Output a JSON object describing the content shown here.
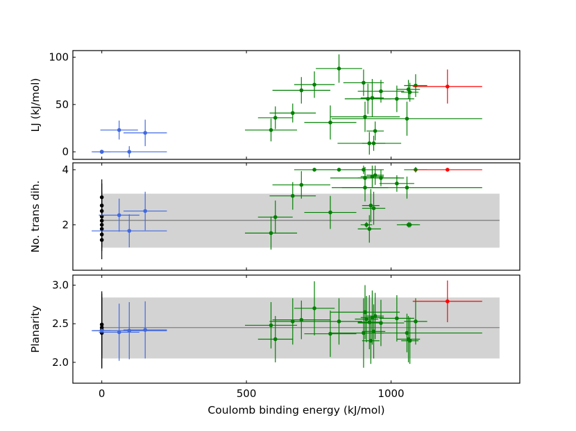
{
  "chart_data": {
    "type": "scatter",
    "xlabel": "Coulomb binding energy (kJ/mol)",
    "xlim": [
      -100,
      1445
    ],
    "xticks": [
      0,
      500,
      1000
    ],
    "xtick_labels": [
      "0",
      "500",
      "1000"
    ],
    "colors": {
      "black": "#000000",
      "blue": "#4169e1",
      "green": "#008000",
      "red": "#ff0000",
      "band": "#d3d3d3",
      "mean_line": "#808080"
    },
    "panels": [
      {
        "name": "lj",
        "ylabel": "LJ (kJ/mol)",
        "ylim": [
          -8,
          107
        ],
        "yticks": [
          0,
          50,
          100
        ],
        "ytick_labels": [
          "0",
          "50",
          "100"
        ],
        "points": [
          {
            "g": "black",
            "x": 0,
            "y": 0,
            "xe": 0,
            "ye": 0
          },
          {
            "g": "blue",
            "x": 60,
            "y": 23,
            "xe": 65,
            "ye": 10
          },
          {
            "g": "blue",
            "x": 150,
            "y": 20,
            "xe": 75,
            "ye": 14
          },
          {
            "g": "blue",
            "x": 95,
            "y": 0,
            "xe": 130,
            "ye": 6
          },
          {
            "g": "blue",
            "x": 0,
            "y": 0,
            "xe": 30,
            "ye": 0
          },
          {
            "g": "green",
            "x": 585,
            "y": 23,
            "xe": 90,
            "ye": 12
          },
          {
            "g": "green",
            "x": 600,
            "y": 36,
            "xe": 60,
            "ye": 12
          },
          {
            "g": "green",
            "x": 660,
            "y": 41,
            "xe": 80,
            "ye": 10
          },
          {
            "g": "green",
            "x": 690,
            "y": 65,
            "xe": 100,
            "ye": 14
          },
          {
            "g": "green",
            "x": 735,
            "y": 71,
            "xe": 70,
            "ye": 14
          },
          {
            "g": "green",
            "x": 790,
            "y": 31,
            "xe": 90,
            "ye": 18
          },
          {
            "g": "green",
            "x": 820,
            "y": 88,
            "xe": 80,
            "ye": 15
          },
          {
            "g": "green",
            "x": 905,
            "y": 73,
            "xe": 70,
            "ye": 14
          },
          {
            "g": "green",
            "x": 910,
            "y": 37,
            "xe": 120,
            "ye": 16
          },
          {
            "g": "green",
            "x": 920,
            "y": 56,
            "xe": 80,
            "ye": 16
          },
          {
            "g": "green",
            "x": 925,
            "y": 9,
            "xe": 110,
            "ye": 12
          },
          {
            "g": "green",
            "x": 935,
            "y": 57,
            "xe": 40,
            "ye": 20
          },
          {
            "g": "green",
            "x": 940,
            "y": 9,
            "xe": 40,
            "ye": 8
          },
          {
            "g": "green",
            "x": 945,
            "y": 22,
            "xe": 30,
            "ye": 10
          },
          {
            "g": "green",
            "x": 965,
            "y": 64,
            "xe": 80,
            "ye": 12
          },
          {
            "g": "green",
            "x": 1020,
            "y": 56,
            "xe": 60,
            "ye": 14
          },
          {
            "g": "green",
            "x": 1055,
            "y": 35,
            "xe": 260,
            "ye": 18
          },
          {
            "g": "green",
            "x": 1060,
            "y": 66,
            "xe": 40,
            "ye": 10
          },
          {
            "g": "green",
            "x": 1065,
            "y": 63,
            "xe": 30,
            "ye": 10
          },
          {
            "g": "green",
            "x": 1085,
            "y": 70,
            "xe": 40,
            "ye": 12
          },
          {
            "g": "red",
            "x": 1195,
            "y": 69,
            "xe": 120,
            "ye": 18
          }
        ]
      },
      {
        "name": "trans",
        "ylabel": "No. trans dih.",
        "ylim": [
          0.35,
          4.25
        ],
        "yticks": [
          2,
          4
        ],
        "ytick_labels": [
          "2",
          "4"
        ],
        "band": {
          "x": [
            0,
            1375
          ],
          "y": [
            1.17,
            3.13
          ]
        },
        "mean_line": {
          "x": [
            0,
            1375
          ],
          "y": 2.16
        },
        "points": [
          {
            "g": "black",
            "x": 0,
            "y": 1.45,
            "xe": 0,
            "ye": 0.7
          },
          {
            "g": "black",
            "x": 0,
            "y": 1.65,
            "xe": 0,
            "ye": 0.6
          },
          {
            "g": "black",
            "x": 0,
            "y": 1.85,
            "xe": 0,
            "ye": 0.5
          },
          {
            "g": "black",
            "x": 0,
            "y": 2.0,
            "xe": 0,
            "ye": 0.8
          },
          {
            "g": "black",
            "x": 0,
            "y": 2.15,
            "xe": 0,
            "ye": 0.5
          },
          {
            "g": "black",
            "x": 0,
            "y": 2.3,
            "xe": 0,
            "ye": 0.6
          },
          {
            "g": "black",
            "x": 0,
            "y": 2.5,
            "xe": 0,
            "ye": 0.7
          },
          {
            "g": "black",
            "x": 0,
            "y": 2.7,
            "xe": 0,
            "ye": 0.8
          },
          {
            "g": "black",
            "x": 0,
            "y": 3.0,
            "xe": 0,
            "ye": 0.65
          },
          {
            "g": "blue",
            "x": 60,
            "y": 2.35,
            "xe": 70,
            "ye": 0.6
          },
          {
            "g": "blue",
            "x": 150,
            "y": 2.5,
            "xe": 75,
            "ye": 0.7
          },
          {
            "g": "blue",
            "x": 95,
            "y": 1.78,
            "xe": 130,
            "ye": 0.6
          },
          {
            "g": "green",
            "x": 585,
            "y": 1.7,
            "xe": 90,
            "ye": 0.6
          },
          {
            "g": "green",
            "x": 600,
            "y": 2.28,
            "xe": 60,
            "ye": 0.6
          },
          {
            "g": "green",
            "x": 660,
            "y": 3.05,
            "xe": 80,
            "ye": 0.5
          },
          {
            "g": "green",
            "x": 690,
            "y": 3.45,
            "xe": 100,
            "ye": 0.5
          },
          {
            "g": "green",
            "x": 735,
            "y": 4.0,
            "xe": 70,
            "ye": 0.0
          },
          {
            "g": "green",
            "x": 790,
            "y": 2.45,
            "xe": 90,
            "ye": 0.6
          },
          {
            "g": "green",
            "x": 820,
            "y": 4.0,
            "xe": 80,
            "ye": 0.0
          },
          {
            "g": "green",
            "x": 905,
            "y": 4.0,
            "xe": 70,
            "ye": 0.15
          },
          {
            "g": "green",
            "x": 910,
            "y": 3.7,
            "xe": 120,
            "ye": 0.4
          },
          {
            "g": "green",
            "x": 910,
            "y": 3.35,
            "xe": 80,
            "ye": 0.5
          },
          {
            "g": "green",
            "x": 915,
            "y": 2.0,
            "xe": 20,
            "ye": 0.1
          },
          {
            "g": "green",
            "x": 925,
            "y": 1.85,
            "xe": 40,
            "ye": 0.5
          },
          {
            "g": "green",
            "x": 930,
            "y": 2.7,
            "xe": 30,
            "ye": 0.6
          },
          {
            "g": "green",
            "x": 935,
            "y": 3.75,
            "xe": 40,
            "ye": 0.4
          },
          {
            "g": "green",
            "x": 940,
            "y": 2.6,
            "xe": 40,
            "ye": 0.6
          },
          {
            "g": "green",
            "x": 945,
            "y": 3.8,
            "xe": 30,
            "ye": 0.35
          },
          {
            "g": "green",
            "x": 965,
            "y": 3.7,
            "xe": 80,
            "ye": 0.3
          },
          {
            "g": "green",
            "x": 1020,
            "y": 3.5,
            "xe": 60,
            "ye": 0.3
          },
          {
            "g": "green",
            "x": 1055,
            "y": 3.35,
            "xe": 260,
            "ye": 0.4
          },
          {
            "g": "green",
            "x": 1060,
            "y": 2.0,
            "xe": 40,
            "ye": 0.1
          },
          {
            "g": "green",
            "x": 1065,
            "y": 2.0,
            "xe": 30,
            "ye": 0.1
          },
          {
            "g": "green",
            "x": 1085,
            "y": 4.0,
            "xe": 40,
            "ye": 0.1
          },
          {
            "g": "red",
            "x": 1195,
            "y": 4.0,
            "xe": 120,
            "ye": 0.0
          }
        ]
      },
      {
        "name": "planarity",
        "ylabel": "Planarity",
        "ylim": [
          1.73,
          3.13
        ],
        "yticks": [
          2.0,
          2.5,
          3.0
        ],
        "ytick_labels": [
          "2.0",
          "2.5",
          "3.0"
        ],
        "band": {
          "x": [
            0,
            1375
          ],
          "y": [
            2.05,
            2.84
          ]
        },
        "mean_line": {
          "x": [
            0,
            1375
          ],
          "y": 2.45
        },
        "points": [
          {
            "g": "black",
            "x": 0,
            "y": 2.38,
            "xe": 0,
            "ye": 0.45
          },
          {
            "g": "black",
            "x": 0,
            "y": 2.42,
            "xe": 0,
            "ye": 0.5
          },
          {
            "g": "black",
            "x": 0,
            "y": 2.45,
            "xe": 0,
            "ye": 0.4
          },
          {
            "g": "black",
            "x": 0,
            "y": 2.49,
            "xe": 0,
            "ye": 0.4
          },
          {
            "g": "blue",
            "x": 60,
            "y": 2.39,
            "xe": 70,
            "ye": 0.37
          },
          {
            "g": "blue",
            "x": 95,
            "y": 2.41,
            "xe": 130,
            "ye": 0.37
          },
          {
            "g": "blue",
            "x": 150,
            "y": 2.42,
            "xe": 75,
            "ye": 0.37
          },
          {
            "g": "blue",
            "x": 0,
            "y": 2.41,
            "xe": 30,
            "ye": 0.0
          },
          {
            "g": "green",
            "x": 585,
            "y": 2.48,
            "xe": 90,
            "ye": 0.3
          },
          {
            "g": "green",
            "x": 600,
            "y": 2.3,
            "xe": 60,
            "ye": 0.3
          },
          {
            "g": "green",
            "x": 660,
            "y": 2.53,
            "xe": 80,
            "ye": 0.3
          },
          {
            "g": "green",
            "x": 690,
            "y": 2.55,
            "xe": 100,
            "ye": 0.25
          },
          {
            "g": "green",
            "x": 735,
            "y": 2.7,
            "xe": 70,
            "ye": 0.35
          },
          {
            "g": "green",
            "x": 790,
            "y": 2.37,
            "xe": 90,
            "ye": 0.3
          },
          {
            "g": "green",
            "x": 820,
            "y": 2.53,
            "xe": 80,
            "ye": 0.3
          },
          {
            "g": "green",
            "x": 905,
            "y": 2.38,
            "xe": 70,
            "ye": 0.45
          },
          {
            "g": "green",
            "x": 910,
            "y": 2.65,
            "xe": 120,
            "ye": 0.35
          },
          {
            "g": "green",
            "x": 915,
            "y": 2.56,
            "xe": 40,
            "ye": 0.3
          },
          {
            "g": "green",
            "x": 925,
            "y": 2.52,
            "xe": 40,
            "ye": 0.35
          },
          {
            "g": "green",
            "x": 930,
            "y": 2.28,
            "xe": 30,
            "ye": 0.3
          },
          {
            "g": "green",
            "x": 935,
            "y": 2.58,
            "xe": 40,
            "ye": 0.35
          },
          {
            "g": "green",
            "x": 940,
            "y": 2.4,
            "xe": 40,
            "ye": 0.35
          },
          {
            "g": "green",
            "x": 945,
            "y": 2.6,
            "xe": 30,
            "ye": 0.3
          },
          {
            "g": "green",
            "x": 965,
            "y": 2.51,
            "xe": 80,
            "ye": 0.3
          },
          {
            "g": "green",
            "x": 1020,
            "y": 2.57,
            "xe": 60,
            "ye": 0.3
          },
          {
            "g": "green",
            "x": 1055,
            "y": 2.38,
            "xe": 260,
            "ye": 0.25
          },
          {
            "g": "green",
            "x": 1060,
            "y": 2.3,
            "xe": 40,
            "ye": 0.3
          },
          {
            "g": "green",
            "x": 1065,
            "y": 2.28,
            "xe": 30,
            "ye": 0.3
          },
          {
            "g": "green",
            "x": 1085,
            "y": 2.53,
            "xe": 40,
            "ye": 0.3
          },
          {
            "g": "red",
            "x": 1195,
            "y": 2.79,
            "xe": 120,
            "ye": 0.27
          }
        ]
      }
    ]
  }
}
